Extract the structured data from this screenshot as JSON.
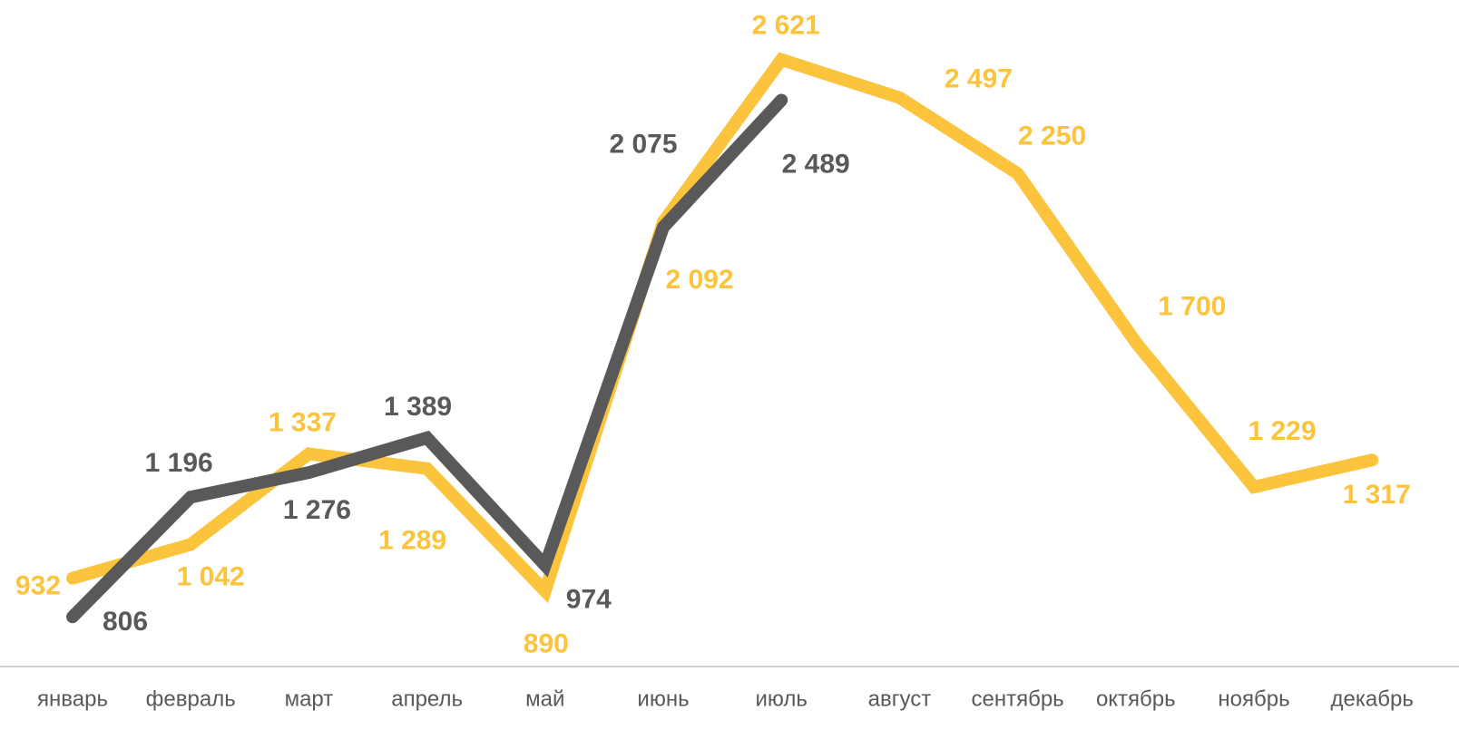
{
  "chart_data": {
    "type": "line",
    "categories": [
      "январь",
      "февраль",
      "март",
      "апрель",
      "май",
      "июнь",
      "июль",
      "август",
      "сентябрь",
      "октябрь",
      "ноябрь",
      "декабрь"
    ],
    "series": [
      {
        "color": "#fcc33c",
        "values": [
          932,
          1042,
          1337,
          1289,
          890,
          2092,
          2621,
          2497,
          2250,
          1700,
          1229,
          1317
        ],
        "value_labels": [
          "932",
          "1 042",
          "1 337",
          "1 289",
          "890",
          "2 092",
          "2 621",
          "2 497",
          "2 250",
          "1 700",
          "1 229",
          "1 317"
        ]
      },
      {
        "color": "#595959",
        "values": [
          806,
          1196,
          1276,
          1389,
          974,
          2075,
          2489,
          null,
          null,
          null,
          null,
          null
        ],
        "value_labels": [
          "806",
          "1 196",
          "1 276",
          "1 389",
          "974",
          "2 075",
          "2 489",
          null,
          null,
          null,
          null,
          null
        ]
      }
    ],
    "ylim": [
      600,
      2700
    ]
  }
}
